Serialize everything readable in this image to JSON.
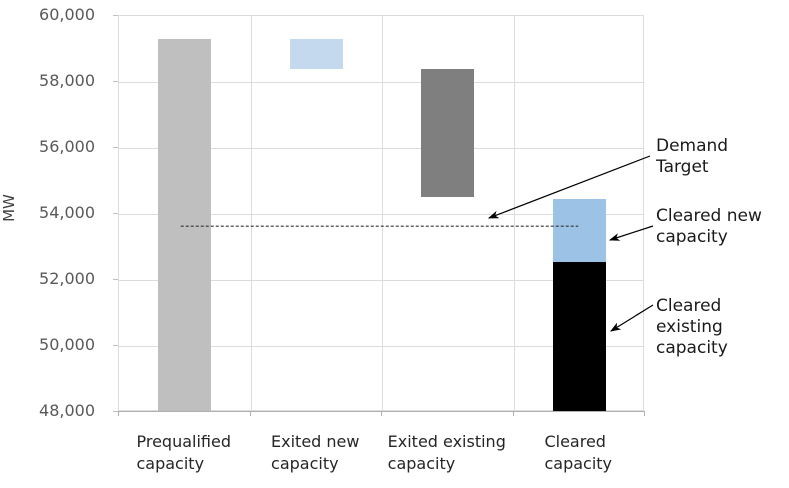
{
  "chart_data": {
    "type": "bar",
    "subtype": "floating-column-waterfall",
    "title": "",
    "ylabel": "MW",
    "ylim": [
      48000,
      60000
    ],
    "ytick_step": 2000,
    "ytick_labels": [
      "60,000",
      "58,000",
      "56,000",
      "54,000",
      "52,000",
      "50,000",
      "48,000"
    ],
    "grid": "horizontal and vertical light gray gridlines, full plot border",
    "legend": "none (labels via annotations with arrows)",
    "categories": [
      {
        "label": "Prequalified capacity",
        "label_lines": [
          "Prequalified",
          "capacity"
        ]
      },
      {
        "label": "Exited new capacity",
        "label_lines": [
          "Exited new",
          "capacity"
        ]
      },
      {
        "label": "Exited existing capacity",
        "label_lines": [
          "Exited existing",
          "capacity"
        ]
      },
      {
        "label": "Cleared capacity",
        "label_lines": [
          "Cleared",
          "capacity"
        ]
      }
    ],
    "bars": [
      {
        "name": "Prequalified capacity",
        "category_index": 0,
        "from": 48000,
        "to": 59300,
        "color": "#BFBFBF"
      },
      {
        "name": "Exited new capacity",
        "category_index": 1,
        "from": 58400,
        "to": 59300,
        "color": "#C4D9ED"
      },
      {
        "name": "Exited existing capacity",
        "category_index": 2,
        "from": 54500,
        "to": 58400,
        "color": "#7F7F7F"
      },
      {
        "name": "Cleared existing capacity",
        "category_index": 3,
        "from": 48000,
        "to": 52550,
        "color": "#000000"
      },
      {
        "name": "Cleared new capacity",
        "category_index": 3,
        "from": 52550,
        "to": 54450,
        "color": "#9CC2E5"
      }
    ],
    "demand_target_line": {
      "value": 53600,
      "style": "dashed",
      "color": "#333333",
      "spans": "from center of first category to center of last category"
    },
    "annotations": [
      {
        "id": "demand-target",
        "lines": [
          "Demand",
          "Target"
        ],
        "arrow_points_to": "demand target dashed line"
      },
      {
        "id": "cleared-new",
        "lines": [
          "Cleared new",
          "capacity"
        ],
        "arrow_points_to": "blue segment of Cleared capacity bar"
      },
      {
        "id": "cleared-existing",
        "lines": [
          "Cleared existing",
          "capacity"
        ],
        "arrow_points_to": "black segment of Cleared capacity bar"
      }
    ]
  }
}
